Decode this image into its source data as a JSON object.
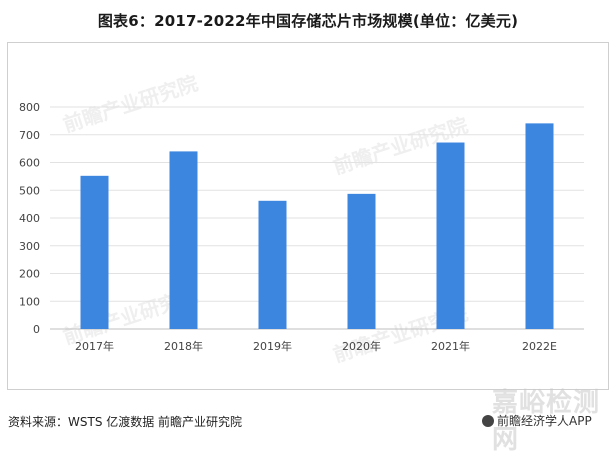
{
  "title": "图表6：2017-2022年中国存储芯片市场规模(单位：亿美元)",
  "source": "资料来源：WSTS 亿渡数据 前瞻产业研究院",
  "brand": "前瞻经济学人APP",
  "watermark_site": "嘉峪检测网",
  "watermark_text": "前瞻产业研究院",
  "colors": {
    "bar": "#3d86e0",
    "grid": "#e2e2e2",
    "axis": "#bfbfbf"
  },
  "chart_data": {
    "type": "bar",
    "categories": [
      "2017年",
      "2018年",
      "2019年",
      "2020年",
      "2021年",
      "2022E"
    ],
    "values": [
      552,
      640,
      462,
      487,
      672,
      741
    ],
    "yticks": [
      0,
      100,
      200,
      300,
      400,
      500,
      600,
      700,
      800
    ],
    "ylim": [
      0,
      800
    ],
    "grid": true,
    "legend": "none"
  }
}
